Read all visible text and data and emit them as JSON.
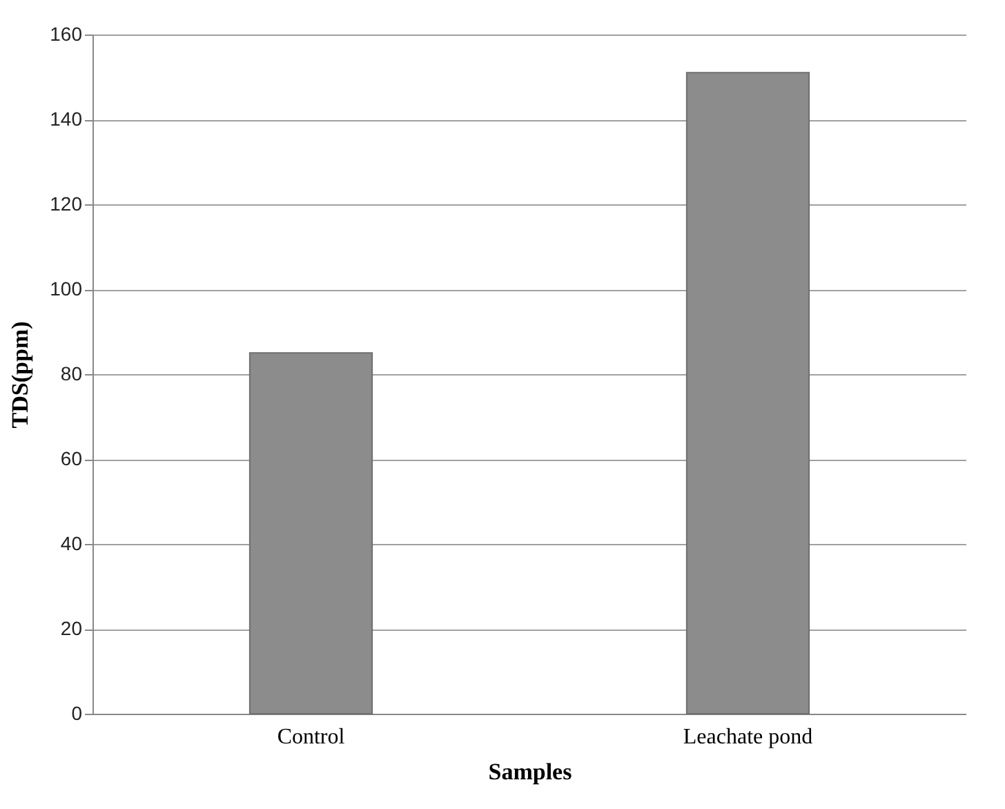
{
  "chart_data": {
    "type": "bar",
    "xlabel": "Samples",
    "ylabel": "TDS(ppm)",
    "categories": [
      "Control",
      "Leachate pond"
    ],
    "values": [
      85,
      151
    ],
    "color": "#8c8c8c",
    "ylim": [
      0,
      160
    ],
    "yticks": [
      0,
      20,
      40,
      60,
      80,
      100,
      120,
      140,
      160
    ],
    "grid": "y"
  }
}
